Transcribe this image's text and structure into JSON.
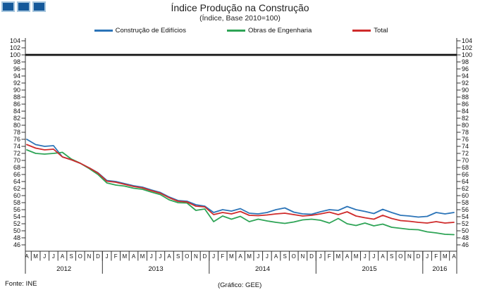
{
  "header": {
    "title": "Índice Produção na Construção",
    "subtitle": "(Índice, Base 2010=100)"
  },
  "legend": [
    {
      "label": "Construção de Edifícios",
      "color": "#2b74b8"
    },
    {
      "label": "Obras de Engenharia",
      "color": "#2ea456"
    },
    {
      "label": "Total",
      "color": "#cf2b2b"
    }
  ],
  "footer": {
    "source": "Fonte: INE",
    "credit": "(Gráfico: GEE)"
  },
  "logo": {
    "square_count": 3,
    "fill": "#15599a",
    "border": "#a6c6de"
  },
  "chart_data": {
    "type": "line",
    "title": "Índice Produção na Construção",
    "subtitle": "(Índice, Base 2010=100)",
    "ylim": [
      46,
      104
    ],
    "ytick_step": 2,
    "grid": false,
    "legend_position": "top",
    "reference_line": {
      "value": 100,
      "color": "#111111"
    },
    "x_months": [
      "A",
      "M",
      "J",
      "J",
      "A",
      "S",
      "O",
      "N",
      "D",
      "J",
      "F",
      "M",
      "A",
      "M",
      "J",
      "J",
      "A",
      "S",
      "O",
      "N",
      "D",
      "J",
      "F",
      "M",
      "A",
      "M",
      "J",
      "J",
      "A",
      "S",
      "O",
      "N",
      "D",
      "J",
      "F",
      "M",
      "A",
      "M",
      "J",
      "J",
      "A",
      "S",
      "O",
      "N",
      "D",
      "J",
      "F",
      "M",
      "A"
    ],
    "years": [
      {
        "label": "2012",
        "months": 9
      },
      {
        "label": "2013",
        "months": 12
      },
      {
        "label": "2014",
        "months": 12
      },
      {
        "label": "2015",
        "months": 12
      },
      {
        "label": "2016",
        "months": 4
      }
    ],
    "series": [
      {
        "name": "Construção de Edifícios",
        "color": "#2b74b8",
        "values": [
          76.0,
          74.5,
          74.0,
          74.2,
          71.0,
          70.2,
          69.2,
          67.9,
          66.5,
          64.3,
          64.0,
          63.4,
          62.8,
          62.4,
          61.6,
          60.9,
          59.6,
          58.6,
          58.4,
          57.4,
          57.0,
          55.2,
          56.0,
          55.6,
          56.3,
          55.0,
          54.8,
          55.2,
          56.0,
          56.5,
          55.3,
          54.8,
          54.7,
          55.4,
          56.0,
          55.8,
          56.9,
          56.0,
          55.5,
          54.9,
          56.1,
          55.2,
          54.4,
          54.2,
          53.9,
          54.1,
          55.2,
          54.8,
          55.2
        ]
      },
      {
        "name": "Obras de Engenharia",
        "color": "#2ea456",
        "values": [
          73.0,
          72.0,
          71.8,
          72.0,
          72.3,
          70.4,
          69.2,
          67.7,
          66.0,
          63.6,
          63.0,
          62.7,
          62.1,
          61.8,
          61.0,
          60.3,
          58.8,
          58.0,
          57.9,
          55.8,
          56.2,
          52.6,
          54.2,
          53.3,
          54.1,
          52.6,
          53.3,
          52.8,
          52.4,
          52.1,
          52.5,
          53.1,
          53.3,
          53.0,
          52.2,
          53.5,
          52.0,
          51.5,
          52.2,
          51.4,
          51.9,
          51.0,
          50.7,
          50.4,
          50.3,
          49.7,
          49.4,
          49.0,
          48.9
        ]
      },
      {
        "name": "Total",
        "color": "#cf2b2b",
        "values": [
          74.5,
          73.5,
          73.0,
          73.2,
          71.0,
          70.2,
          69.2,
          67.9,
          66.4,
          64.1,
          63.8,
          63.2,
          62.6,
          62.2,
          61.4,
          60.7,
          59.4,
          58.4,
          58.2,
          57.0,
          56.8,
          54.6,
          55.2,
          54.8,
          55.5,
          54.4,
          54.3,
          54.5,
          54.8,
          55.0,
          54.6,
          54.2,
          54.4,
          54.8,
          55.3,
          54.6,
          55.4,
          54.2,
          53.7,
          53.3,
          54.4,
          53.5,
          52.9,
          52.7,
          52.4,
          52.2,
          52.6,
          52.2,
          52.4
        ]
      }
    ]
  }
}
